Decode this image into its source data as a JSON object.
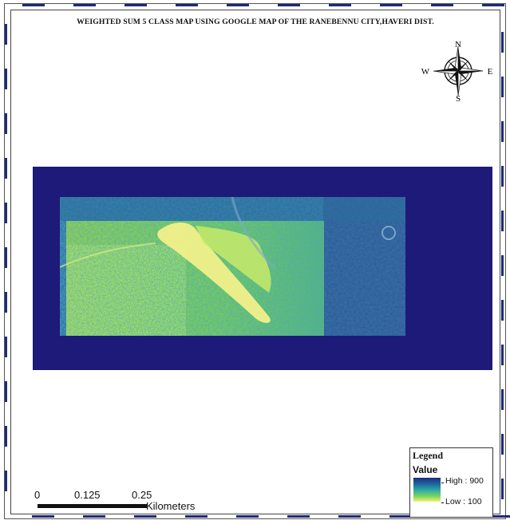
{
  "map": {
    "title": "WEIGHTED SUM 5 CLASS MAP USING GOOGLE MAP OF THE RANEBENNU CITY,HAVERI DIST."
  },
  "north_arrow": {
    "n": "N",
    "s": "S",
    "e": "E",
    "w": "W"
  },
  "scale_bar": {
    "labels": [
      "0",
      "0.125",
      "0.25"
    ],
    "unit": "Kilometers"
  },
  "legend": {
    "title": "Legend",
    "field": "Value",
    "high_label": "High : 900",
    "low_label": "Low : 100",
    "ramp_colors": [
      "#1e2a7e",
      "#1d6fa4",
      "#33b1a1",
      "#7fd55a",
      "#f3f37a"
    ]
  },
  "colors": {
    "background_fill": "#1d1a7a",
    "imagery_low": "#f3f37a",
    "imagery_high": "#1e2a7e"
  }
}
